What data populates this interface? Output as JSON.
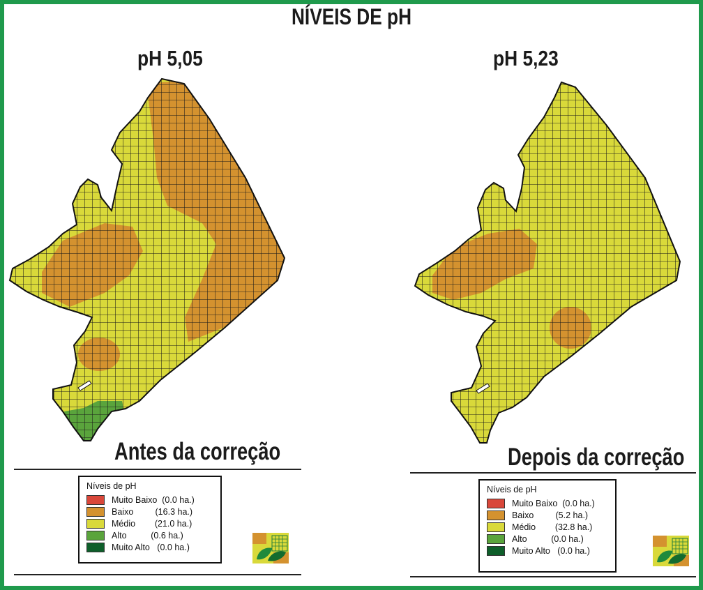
{
  "title": "NÍVEIS DE pH",
  "colors": {
    "muito_baixo": "#d9473a",
    "baixo": "#d4922f",
    "medio": "#d9d93a",
    "alto": "#5aa43c",
    "muito_alto": "#0e5e2a",
    "frame": "#1f9a4c",
    "grid": "#1a1a1a"
  },
  "maps": [
    {
      "ph_label": "pH 5,05",
      "caption": "Antes da correção",
      "legend": {
        "title": "Níveis de pH",
        "items": [
          {
            "label": "Muito Baixo  (0.0 ha.)",
            "color": "#d9473a"
          },
          {
            "label": "Baixo         (16.3 ha.)",
            "color": "#d4922f"
          },
          {
            "label": "Médio        (21.0 ha.)",
            "color": "#d9d93a"
          },
          {
            "label": "Alto          (0.6 ha.)",
            "color": "#5aa43c"
          },
          {
            "label": "Muito Alto   (0.0 ha.)",
            "color": "#0e5e2a"
          }
        ]
      }
    },
    {
      "ph_label": "pH 5,23",
      "caption": "Depois da correção",
      "legend": {
        "title": "Níveis de pH",
        "items": [
          {
            "label": "Muito Baixo  (0.0 ha.)",
            "color": "#d9473a"
          },
          {
            "label": "Baixo         (5.2 ha.)",
            "color": "#d4922f"
          },
          {
            "label": "Médio        (32.8 ha.)",
            "color": "#d9d93a"
          },
          {
            "label": "Alto          (0.0 ha.)",
            "color": "#5aa43c"
          },
          {
            "label": "Muito Alto   (0.0 ha.)",
            "color": "#0e5e2a"
          }
        ]
      }
    }
  ]
}
